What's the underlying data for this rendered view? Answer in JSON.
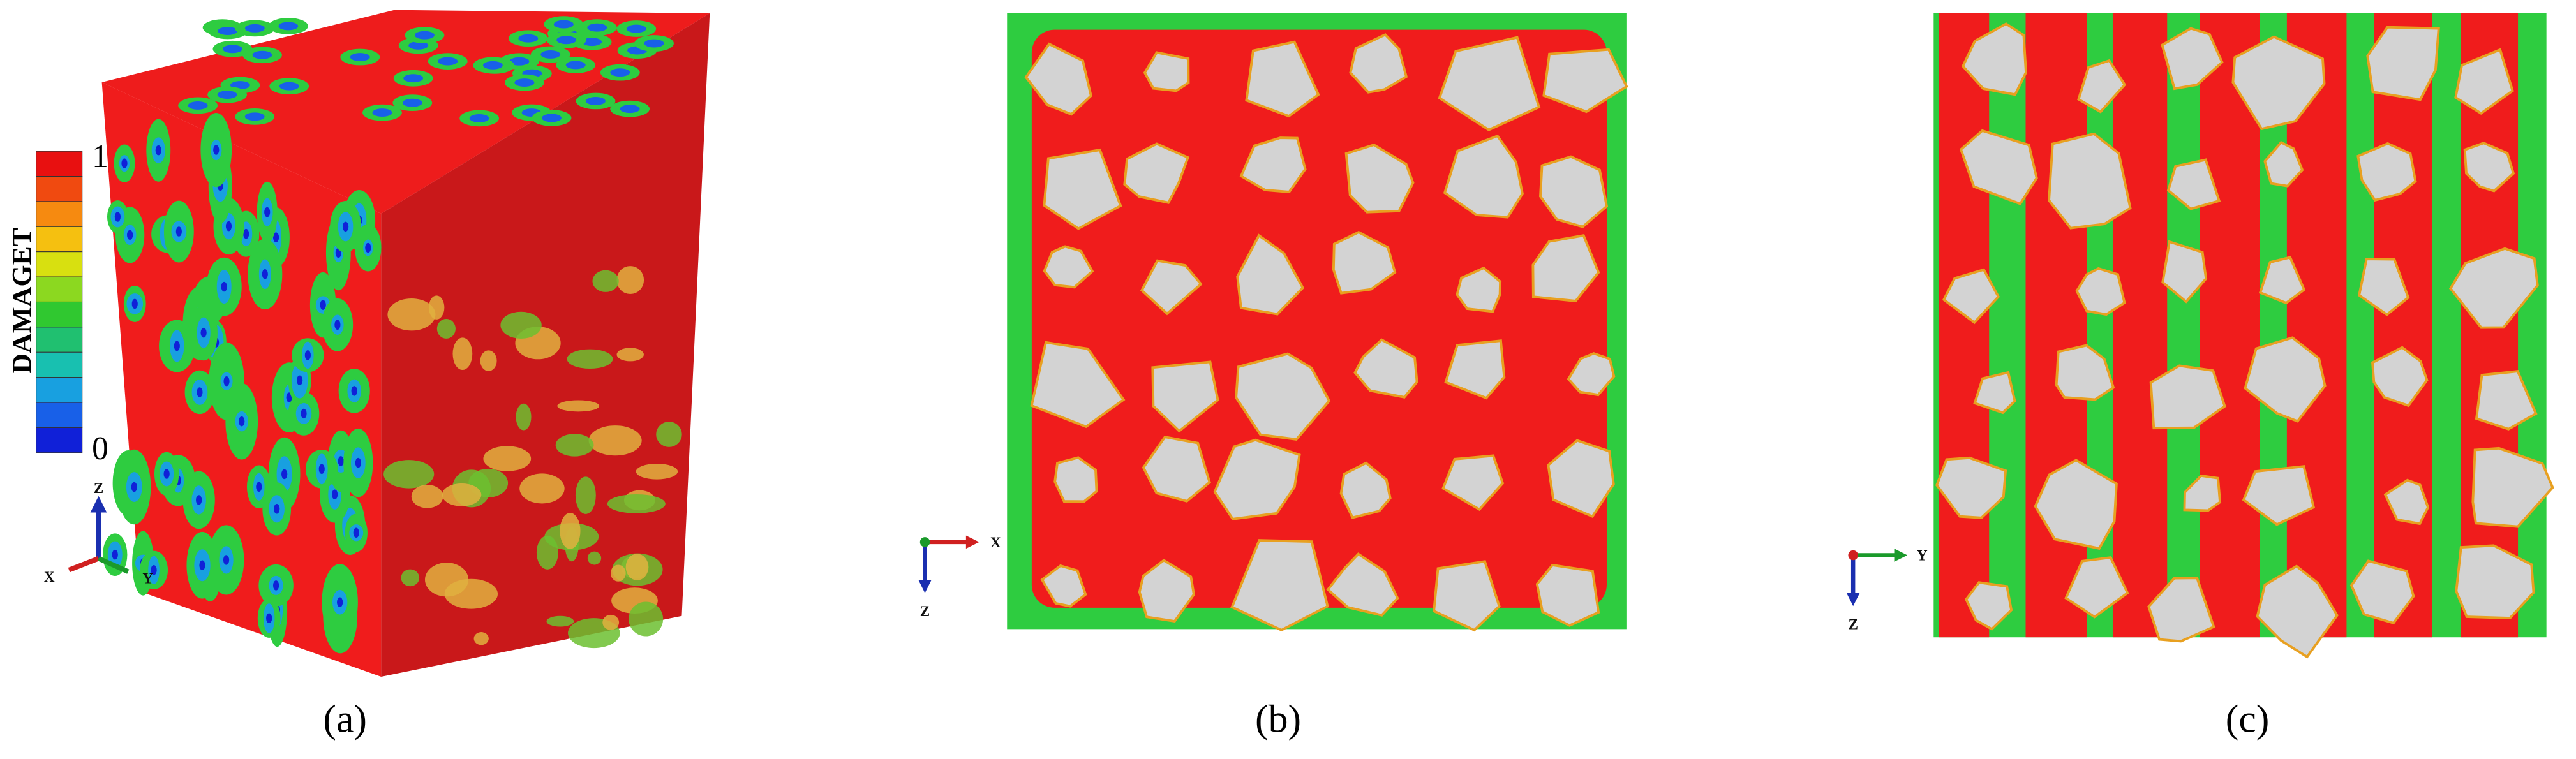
{
  "panels": [
    {
      "caption": "(a)",
      "legend_title": "DAMAGET",
      "legend_max": "1",
      "legend_min": "0",
      "axes": [
        "Z",
        "X",
        "Y"
      ]
    },
    {
      "caption": "(b)",
      "axes": [
        "X",
        "Z"
      ]
    },
    {
      "caption": "(c)",
      "axes": [
        "Y",
        "Z"
      ]
    }
  ]
}
